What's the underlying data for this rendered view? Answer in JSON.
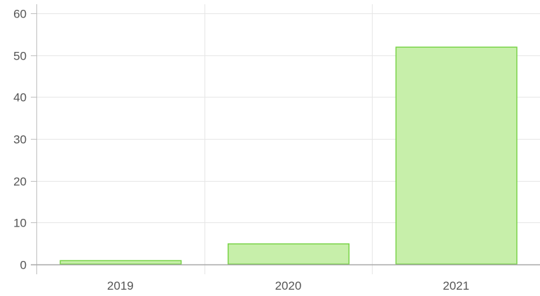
{
  "chart_data": {
    "type": "bar",
    "title": "",
    "xlabel": "",
    "ylabel": "",
    "categories": [
      "2019",
      "2020",
      "2021"
    ],
    "values": [
      1,
      5,
      52
    ],
    "ylim": [
      0,
      60
    ],
    "yticks": [
      0,
      10,
      20,
      30,
      40,
      50,
      60
    ],
    "grid": true,
    "legend": "none",
    "colors": {
      "bar_fill": "#c7efaa",
      "bar_stroke": "#7bd34a",
      "grid": "#e6e6e6",
      "axis": "#bfbfbf",
      "tick_text": "#555555"
    }
  }
}
